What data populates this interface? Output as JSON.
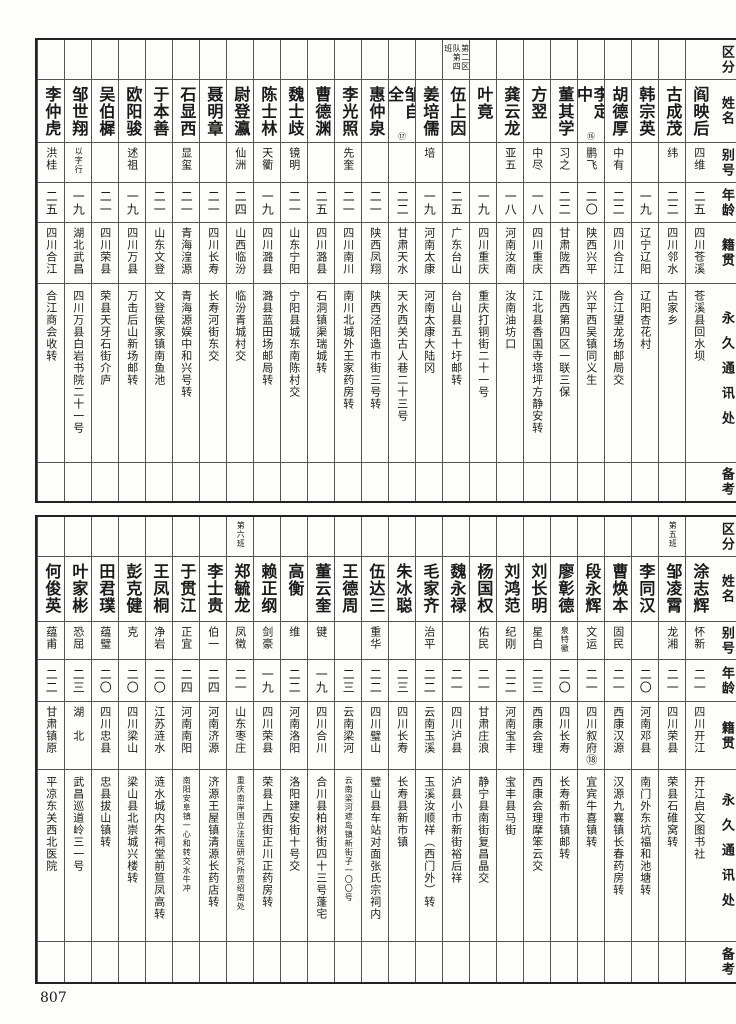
{
  "headers": [
    "区分",
    "姓名",
    "别号",
    "年龄",
    "籍贯",
    "永久通讯处",
    "备考"
  ],
  "page_number": "807",
  "tables": [
    {
      "people": [
        {
          "group": "",
          "name": "阎映后",
          "note": "",
          "alias": "四维",
          "age": "二五",
          "origin": "四川苍溪",
          "address": "苍溪县回水坝",
          "remark": ""
        },
        {
          "group": "",
          "name": "古成茂",
          "note": "",
          "alias": "纬",
          "age": "二二",
          "origin": "四川邻水",
          "address": "古家乡",
          "remark": ""
        },
        {
          "group": "",
          "name": "韩宗英",
          "note": "",
          "alias": "",
          "age": "一九",
          "origin": "辽宁辽阳",
          "address": "辽阳杏花村",
          "remark": ""
        },
        {
          "group": "",
          "name": "胡德厚",
          "note": "",
          "alias": "中有",
          "age": "二二",
          "origin": "四川合江",
          "address": "合江望龙场邮局交",
          "remark": ""
        },
        {
          "group": "",
          "name": "李定中",
          "note": "⑯",
          "alias": "鹏飞",
          "age": "二〇",
          "origin": "陕西兴平",
          "address": "兴平西吴镇同义生",
          "remark": ""
        },
        {
          "group": "",
          "name": "董其学",
          "note": "",
          "alias": "习之",
          "age": "二二",
          "origin": "甘肃陇西",
          "address": "陇西第四区一联三保",
          "remark": ""
        },
        {
          "group": "",
          "name": "方翌",
          "note": "",
          "alias": "中尽",
          "age": "一八",
          "origin": "四川重庆",
          "address": "江北县香国寺塔坪方静安转",
          "remark": ""
        },
        {
          "group": "",
          "name": "龚云龙",
          "note": "",
          "alias": "亚五",
          "age": "一八",
          "origin": "河南汝南",
          "address": "汝南油坊口",
          "remark": ""
        },
        {
          "group": "",
          "name": "叶竟",
          "note": "",
          "alias": "",
          "age": "一九",
          "origin": "四川重庆",
          "address": "重庆打铜街二十一号",
          "remark": ""
        },
        {
          "group": "第二区队第四班",
          "name": "伍上因",
          "note": "",
          "alias": "",
          "age": "二五",
          "origin": "广东台山",
          "address": "台山县五十圩邮转",
          "remark": ""
        },
        {
          "group": "",
          "name": "姜培儒",
          "note": "",
          "alias": "培",
          "age": "一九",
          "origin": "河南太康",
          "address": "河南太康大陆冈",
          "remark": ""
        },
        {
          "group": "",
          "name": "邹自全",
          "note": "⑰",
          "alias": "",
          "age": "二二",
          "origin": "甘肃天水",
          "address": "天水西关古人巷二十三号",
          "remark": ""
        },
        {
          "group": "",
          "name": "惠仲泉",
          "note": "",
          "alias": "",
          "age": "二一",
          "origin": "陕西凤翔",
          "address": "陕西泾阳造市街三号转",
          "remark": ""
        },
        {
          "group": "",
          "name": "李光照",
          "note": "",
          "alias": "先奎",
          "age": "二一",
          "origin": "四川南川",
          "address": "南川北城外王家药房转",
          "remark": ""
        },
        {
          "group": "",
          "name": "曹德渊",
          "note": "",
          "alias": "",
          "age": "二五",
          "origin": "四川潞县",
          "address": "石洞镇渠瑞城转",
          "remark": ""
        },
        {
          "group": "",
          "name": "魏士歧",
          "note": "",
          "alias": "镜明",
          "age": "二一",
          "origin": "山东宁阳",
          "address": "宁阳县城东南陈村交",
          "remark": ""
        },
        {
          "group": "",
          "name": "陈士林",
          "note": "",
          "alias": "天衢",
          "age": "一九",
          "origin": "四川潞县",
          "address": "潞县蓝田场邮局转",
          "remark": ""
        },
        {
          "group": "",
          "name": "尉登瀛",
          "note": "",
          "alias": "仙洲",
          "age": "二四",
          "origin": "山西临汾",
          "address": "临汾青城村交",
          "remark": ""
        },
        {
          "group": "",
          "name": "聂明章",
          "note": "",
          "alias": "",
          "age": "二一",
          "origin": "四川长寿",
          "address": "长寿河街东交",
          "remark": ""
        },
        {
          "group": "",
          "name": "石显西",
          "note": "",
          "alias": "显玺",
          "age": "二一",
          "origin": "青海湟源",
          "address": "青海源娱中和兴号转",
          "remark": ""
        },
        {
          "group": "",
          "name": "于本善",
          "note": "",
          "alias": "",
          "age": "二一",
          "origin": "山东文登",
          "address": "文登侯家镇南鱼池",
          "remark": ""
        },
        {
          "group": "",
          "name": "欧阳骏",
          "note": "",
          "alias": "述祖",
          "age": "一九",
          "origin": "四川万县",
          "address": "万击后山新场邮转",
          "remark": ""
        },
        {
          "group": "",
          "name": "吴伯樨",
          "note": "",
          "alias": "",
          "age": "二一",
          "origin": "四川荣县",
          "address": "荣县天牙石街介庐",
          "remark": ""
        },
        {
          "group": "",
          "name": "邹世翔",
          "note": "",
          "alias": "以字行",
          "age": "一九",
          "origin": "湖北武昌",
          "address": "四川万县白岩书院二十一号",
          "remark": ""
        },
        {
          "group": "",
          "name": "李仲虎",
          "note": "",
          "alias": "洪桂",
          "age": "二五",
          "origin": "四川合江",
          "address": "合江商会收转",
          "remark": ""
        }
      ]
    },
    {
      "people": [
        {
          "group": "",
          "name": "涂志辉",
          "note": "",
          "alias": "怀新",
          "age": "二一",
          "origin": "四川开江",
          "address": "开江启文图书社",
          "remark": ""
        },
        {
          "group": "第五班",
          "name": "邹凌霄",
          "note": "",
          "alias": "龙湘",
          "age": "二一",
          "origin": "四川荣县",
          "address": "荣县石碓窝转",
          "remark": ""
        },
        {
          "group": "",
          "name": "李同汉",
          "note": "",
          "alias": "",
          "age": "二〇",
          "origin": "河南邓县",
          "address": "南门外东坑福和池塘转",
          "remark": ""
        },
        {
          "group": "",
          "name": "曹焕本",
          "note": "",
          "alias": "固民",
          "age": "二一",
          "origin": "西康汉源",
          "address": "汉源九襄镇长春药房转",
          "remark": ""
        },
        {
          "group": "",
          "name": "段永辉",
          "note": "",
          "alias": "文运",
          "age": "二一",
          "origin": "四川叙府⑱",
          "address": "宜宾牛喜镇转",
          "remark": ""
        },
        {
          "group": "",
          "name": "廖彰德",
          "note": "",
          "alias": "泉特徽",
          "age": "二〇",
          "origin": "四川长寿",
          "address": "长寿新市镇邮转",
          "remark": ""
        },
        {
          "group": "",
          "name": "刘长明",
          "note": "",
          "alias": "星白",
          "age": "二三",
          "origin": "西康会理",
          "address": "西康会理摩笨云交",
          "remark": ""
        },
        {
          "group": "",
          "name": "刘鸿范",
          "note": "",
          "alias": "纪刚",
          "age": "二二",
          "origin": "河南宝丰",
          "address": "宝丰县马街",
          "remark": ""
        },
        {
          "group": "",
          "name": "杨国权",
          "note": "",
          "alias": "佑民",
          "age": "二一",
          "origin": "甘肃庄浪",
          "address": "静宁县南街复昌晶交",
          "remark": ""
        },
        {
          "group": "",
          "name": "魏永禄",
          "note": "",
          "alias": "",
          "age": "二一",
          "origin": "四川泸县",
          "address": "泸县小市新街裕后祥",
          "remark": ""
        },
        {
          "group": "",
          "name": "毛家齐",
          "note": "",
          "alias": "治平",
          "age": "二二",
          "origin": "云南玉溪",
          "address": "玉溪汝顺祥（西门外）转",
          "remark": ""
        },
        {
          "group": "",
          "name": "朱冰聪",
          "note": "",
          "alias": "",
          "age": "二三",
          "origin": "四川长寿",
          "address": "长寿县新市镇",
          "remark": ""
        },
        {
          "group": "",
          "name": "伍达三",
          "note": "",
          "alias": "重华",
          "age": "二二",
          "origin": "四川璧山",
          "address": "璧山县车站对面张氏宗祠内",
          "remark": ""
        },
        {
          "group": "",
          "name": "王德周",
          "note": "",
          "alias": "",
          "age": "二三",
          "origin": "云南梁河",
          "address": "云南梁河遮岛镇新街子一〇〇号",
          "remark": ""
        },
        {
          "group": "",
          "name": "董云奎",
          "note": "",
          "alias": "键",
          "age": "一九",
          "origin": "四川合川",
          "address": "合川县柏树街四十三号蓬宅",
          "remark": ""
        },
        {
          "group": "",
          "name": "高衡",
          "note": "",
          "alias": "维",
          "age": "二二",
          "origin": "河南洛阳",
          "address": "洛阳建安街十号交",
          "remark": ""
        },
        {
          "group": "",
          "name": "赖正纲",
          "note": "",
          "alias": "剑豪",
          "age": "一九",
          "origin": "四川荣县",
          "address": "荣县上西街正川正药房转",
          "remark": ""
        },
        {
          "group": "第六班",
          "name": "郑毓龙",
          "note": "",
          "alias": "凤徵",
          "age": "二一",
          "origin": "山东枣庄",
          "address": "重庆南岸国立法医研究所贾绍南处",
          "remark": ""
        },
        {
          "group": "",
          "name": "李士贵",
          "note": "",
          "alias": "伯一",
          "age": "二四",
          "origin": "河南济源",
          "address": "济源王屋镇清源长药店转",
          "remark": ""
        },
        {
          "group": "",
          "name": "于贯江",
          "note": "",
          "alias": "正宜",
          "age": "二四",
          "origin": "河南南阳",
          "address": "南阳安阜镇一心和转交水牛冲",
          "remark": ""
        },
        {
          "group": "",
          "name": "王凤桐",
          "note": "",
          "alias": "净岩",
          "age": "二〇",
          "origin": "江苏涟水",
          "address": "涟水城内朱祠堂前笪凤高转",
          "remark": ""
        },
        {
          "group": "",
          "name": "彭克健",
          "note": "",
          "alias": "克",
          "age": "二〇",
          "origin": "四川梁山",
          "address": "梁山县北崇城兴楼转",
          "remark": ""
        },
        {
          "group": "",
          "name": "田君璞",
          "note": "",
          "alias": "蕴璧",
          "age": "二〇",
          "origin": "四川忠县",
          "address": "忠县拔山镇转",
          "remark": ""
        },
        {
          "group": "",
          "name": "叶家彬",
          "note": "",
          "alias": "恐屈",
          "age": "二三",
          "origin": "湖　北",
          "address": "武昌巡道岭三一号",
          "remark": ""
        },
        {
          "group": "",
          "name": "何俊英",
          "note": "",
          "alias": "蕴甫",
          "age": "二二",
          "origin": "甘肃镇原",
          "address": "平凉东关西北医院",
          "remark": ""
        }
      ]
    }
  ]
}
